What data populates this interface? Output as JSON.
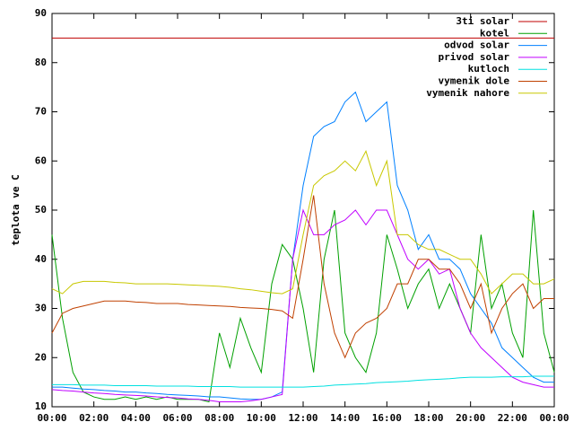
{
  "chart_data": {
    "type": "line",
    "ylabel": "teplota ve C",
    "x": [
      0,
      0.5,
      1,
      1.5,
      2,
      2.5,
      3,
      3.5,
      4,
      4.5,
      5,
      5.5,
      6,
      6.5,
      7,
      7.5,
      8,
      8.5,
      9,
      9.5,
      10,
      10.5,
      11,
      11.5,
      12,
      12.5,
      13,
      13.5,
      14,
      14.5,
      15,
      15.5,
      16,
      16.5,
      17,
      17.5,
      18,
      18.5,
      19,
      19.5,
      20,
      20.5,
      21,
      21.5,
      22,
      22.5,
      23,
      23.5,
      24
    ],
    "xlim": [
      0,
      24
    ],
    "xticks": [
      {
        "value": 0,
        "label": "00:00"
      },
      {
        "value": 2,
        "label": "02:00"
      },
      {
        "value": 4,
        "label": "04:00"
      },
      {
        "value": 6,
        "label": "06:00"
      },
      {
        "value": 8,
        "label": "08:00"
      },
      {
        "value": 10,
        "label": "10:00"
      },
      {
        "value": 12,
        "label": "12:00"
      },
      {
        "value": 14,
        "label": "14:00"
      },
      {
        "value": 16,
        "label": "16:00"
      },
      {
        "value": 18,
        "label": "18:00"
      },
      {
        "value": 20,
        "label": "20:00"
      },
      {
        "value": 22,
        "label": "22:00"
      },
      {
        "value": 24,
        "label": "00:00"
      }
    ],
    "ylim": [
      10,
      90
    ],
    "yticks": [
      10,
      20,
      30,
      40,
      50,
      60,
      70,
      80,
      90
    ],
    "legend": "top-right",
    "series": [
      {
        "name": "3ti solar",
        "color": "#c00000",
        "values": [
          85,
          85,
          85,
          85,
          85,
          85,
          85,
          85,
          85,
          85,
          85,
          85,
          85,
          85,
          85,
          85,
          85,
          85,
          85,
          85,
          85,
          85,
          85,
          85,
          85,
          85,
          85,
          85,
          85,
          85,
          85,
          85,
          85,
          85,
          85,
          85,
          85,
          85,
          85,
          85,
          85,
          85,
          85,
          85,
          85,
          85,
          85,
          85,
          85
        ]
      },
      {
        "name": "kotel",
        "color": "#00a000",
        "values": [
          45,
          28,
          17,
          13,
          12,
          11.5,
          11.5,
          12,
          11.5,
          12,
          11.5,
          12,
          11.5,
          11.5,
          11.5,
          11,
          25,
          18,
          28,
          22,
          17,
          35,
          43,
          40,
          30,
          17,
          40,
          50,
          25,
          20,
          17,
          25,
          45,
          38,
          30,
          35,
          38,
          30,
          35,
          30,
          25,
          45,
          30,
          35,
          25,
          20,
          50,
          25,
          17
        ]
      },
      {
        "name": "odvod solar",
        "color": "#0080ff",
        "values": [
          14,
          14,
          13.8,
          13.6,
          13.5,
          13.3,
          13.2,
          13,
          13,
          12.8,
          12.7,
          12.5,
          12.4,
          12.3,
          12.2,
          12,
          12,
          11.8,
          11.6,
          11.5,
          11.5,
          12,
          13,
          40,
          55,
          65,
          67,
          68,
          72,
          74,
          68,
          70,
          72,
          55,
          50,
          42,
          45,
          40,
          40,
          38,
          33,
          30,
          27,
          22,
          20,
          18,
          16,
          15,
          15
        ]
      },
      {
        "name": "privod solar",
        "color": "#c000ff",
        "values": [
          13.5,
          13.3,
          13.2,
          13,
          12.8,
          12.7,
          12.5,
          12.4,
          12.3,
          12.2,
          12,
          11.9,
          11.8,
          11.6,
          11.5,
          11.3,
          11,
          11,
          11,
          11.2,
          11.5,
          12,
          12.5,
          40,
          50,
          45,
          45,
          47,
          48,
          50,
          47,
          50,
          50,
          45,
          40,
          38,
          40,
          37,
          38,
          30,
          25,
          22,
          20,
          18,
          16,
          15,
          14.5,
          14,
          14
        ]
      },
      {
        "name": "kutloch",
        "color": "#00e0e0",
        "values": [
          14.5,
          14.5,
          14.5,
          14.4,
          14.4,
          14.4,
          14.3,
          14.3,
          14.3,
          14.3,
          14.2,
          14.2,
          14.2,
          14.2,
          14.1,
          14.1,
          14.1,
          14.1,
          14,
          14,
          14,
          14,
          14,
          14,
          14,
          14.1,
          14.2,
          14.4,
          14.5,
          14.6,
          14.7,
          14.9,
          15,
          15.1,
          15.2,
          15.4,
          15.5,
          15.6,
          15.7,
          15.9,
          16,
          16,
          16,
          16.1,
          16.1,
          16.1,
          16.2,
          16.2,
          16.2
        ]
      },
      {
        "name": "vymenik dole",
        "color": "#c04000",
        "values": [
          25,
          29,
          30,
          30.5,
          31,
          31.5,
          31.5,
          31.5,
          31.3,
          31.2,
          31,
          31,
          31,
          30.8,
          30.7,
          30.6,
          30.5,
          30.4,
          30.2,
          30.1,
          30,
          29.8,
          29.5,
          28,
          40,
          53,
          35,
          25,
          20,
          25,
          27,
          28,
          30,
          35,
          35,
          40,
          40,
          38,
          38,
          35,
          30,
          35,
          25,
          30,
          33,
          35,
          30,
          32,
          32
        ]
      },
      {
        "name": "vymenik nahore",
        "color": "#c8c800",
        "values": [
          34,
          33,
          35,
          35.5,
          35.5,
          35.5,
          35.3,
          35.2,
          35,
          35,
          35,
          35,
          34.9,
          34.8,
          34.7,
          34.6,
          34.5,
          34.3,
          34,
          33.8,
          33.5,
          33.2,
          33,
          34,
          45,
          55,
          57,
          58,
          60,
          58,
          62,
          55,
          60,
          45,
          45,
          43,
          42,
          42,
          41,
          40,
          40,
          37,
          33,
          35,
          37,
          37,
          35,
          35,
          36
        ]
      }
    ]
  }
}
